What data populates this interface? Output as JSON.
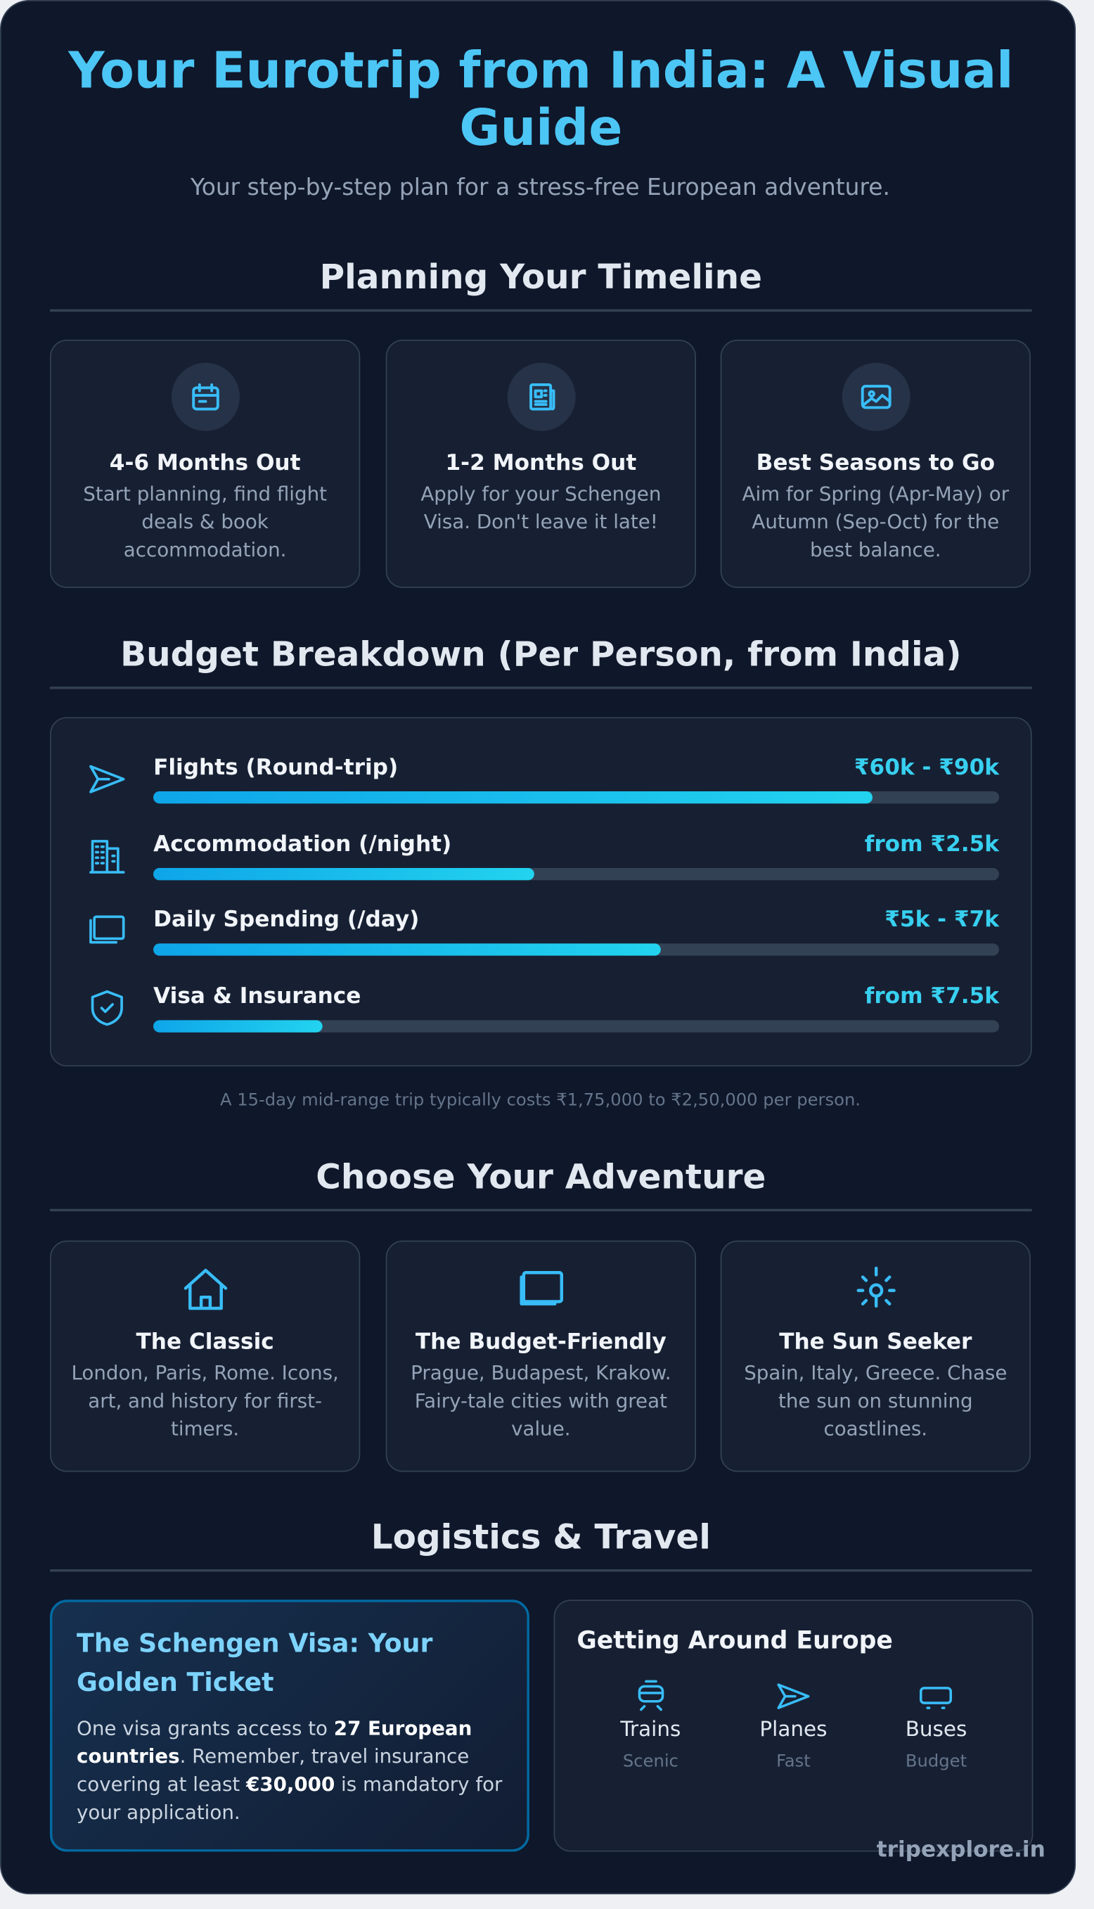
{
  "header": {
    "title": "Your Eurotrip from India: A Visual Guide",
    "subtitle": "Your step-by-step plan for a stress-free European adventure."
  },
  "timeline": {
    "heading": "Planning Your Timeline",
    "cards": [
      {
        "title": "4-6 Months Out",
        "text": "Start planning, find flight deals & book accommodation."
      },
      {
        "title": "1-2 Months Out",
        "text": "Apply for your Schengen Visa. Don't leave it late!"
      },
      {
        "title": "Best Seasons to Go",
        "text": "Aim for Spring (Apr-May) or Autumn (Sep-Oct) for the best balance."
      }
    ]
  },
  "budget": {
    "heading": "Budget Breakdown (Per Person, from India)",
    "items": [
      {
        "label": "Flights (Round-trip)",
        "amount": "₹60k - ₹90k",
        "percent": 85
      },
      {
        "label": "Accommodation (/night)",
        "amount": "from ₹2.5k",
        "percent": 45
      },
      {
        "label": "Daily Spending (/day)",
        "amount": "₹5k - ₹7k",
        "percent": 60
      },
      {
        "label": "Visa & Insurance",
        "amount": "from ₹7.5k",
        "percent": 20
      }
    ],
    "note": "A 15-day mid-range trip typically costs ₹1,75,000 to ₹2,50,000 per person."
  },
  "adventure": {
    "heading": "Choose Your Adventure",
    "cards": [
      {
        "title": "The Classic",
        "text": "London, Paris, Rome. Icons, art, and history for first-timers."
      },
      {
        "title": "The Budget-Friendly",
        "text": "Prague, Budapest, Krakow. Fairy-tale cities with great value."
      },
      {
        "title": "The Sun Seeker",
        "text": "Spain, Italy, Greece. Chase the sun on stunning coastlines."
      }
    ]
  },
  "logistics": {
    "heading": "Logistics & Travel",
    "visa": {
      "title": "The Schengen Visa: Your Golden Ticket",
      "text": [
        {
          "text": "One visa grants access to ",
          "bold": false
        },
        {
          "text": "27 European countries",
          "bold": true
        },
        {
          "text": ". Remember, travel insurance covering at least ",
          "bold": false
        },
        {
          "text": "€30,000",
          "bold": true
        },
        {
          "text": " is mandatory for your application.",
          "bold": false
        }
      ]
    },
    "transport": {
      "title": "Getting Around Europe",
      "modes": [
        {
          "name": "Trains",
          "note": "Scenic"
        },
        {
          "name": "Planes",
          "note": "Fast"
        },
        {
          "name": "Buses",
          "note": "Budget"
        }
      ]
    }
  },
  "footer": {
    "watermark": "tripexplore.in"
  }
}
